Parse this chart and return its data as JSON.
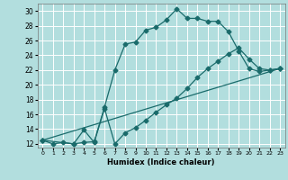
{
  "title": "",
  "xlabel": "Humidex (Indice chaleur)",
  "background_color": "#b2dede",
  "grid_color": "#ffffff",
  "line_color": "#1a6b6b",
  "xlim": [
    -0.5,
    23.5
  ],
  "ylim": [
    11.5,
    31.0
  ],
  "xticks": [
    0,
    1,
    2,
    3,
    4,
    5,
    6,
    7,
    8,
    9,
    10,
    11,
    12,
    13,
    14,
    15,
    16,
    17,
    18,
    19,
    20,
    21,
    22,
    23
  ],
  "yticks": [
    12,
    14,
    16,
    18,
    20,
    22,
    24,
    26,
    28,
    30
  ],
  "line1_x": [
    0,
    1,
    2,
    3,
    4,
    5,
    6,
    7,
    8,
    9,
    10,
    11,
    12,
    13,
    14,
    15,
    16,
    17,
    18,
    19,
    20,
    21,
    22,
    23
  ],
  "line1_y": [
    12.5,
    12.0,
    12.2,
    12.0,
    12.2,
    12.3,
    17.0,
    22.0,
    25.5,
    25.8,
    27.4,
    27.8,
    28.8,
    30.3,
    29.0,
    29.0,
    28.6,
    28.6,
    27.2,
    24.6,
    22.2,
    21.8,
    22.0,
    22.2
  ],
  "line2_x": [
    0,
    3,
    4,
    5,
    6,
    7,
    8,
    9,
    10,
    11,
    12,
    13,
    14,
    15,
    16,
    17,
    18,
    19,
    20,
    21,
    22,
    23
  ],
  "line2_y": [
    12.5,
    12.0,
    13.9,
    12.2,
    16.8,
    12.0,
    13.5,
    14.2,
    15.2,
    16.3,
    17.3,
    18.2,
    19.5,
    21.0,
    22.2,
    23.2,
    24.2,
    25.0,
    23.5,
    22.2,
    22.0,
    22.2
  ],
  "line3_x": [
    0,
    23
  ],
  "line3_y": [
    12.5,
    22.2
  ]
}
